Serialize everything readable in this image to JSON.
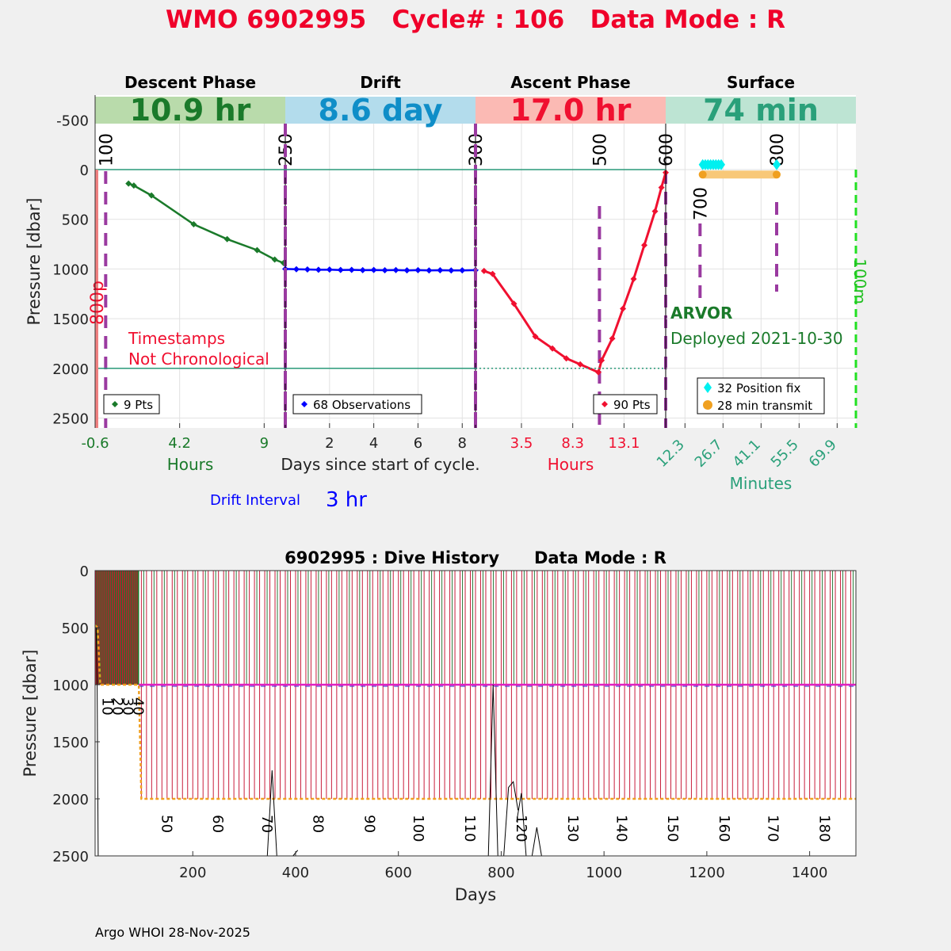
{
  "title": "WMO 6902995   Cycle# : 106   Data Mode : R",
  "footer": "Argo WHOI 28-Nov-2025",
  "colors": {
    "title": "#f0002a",
    "descent": "#1a7a2a",
    "drift": "#0000ff",
    "ascent": "#f01030",
    "surface": "#2aa07a",
    "marker": "#9a3aa0",
    "fix": "#00f0f0",
    "transmit": "#f0a020"
  },
  "chart_data": [
    {
      "type": "line",
      "name": "cycle",
      "ylabel": "Pressure [dbar]",
      "ylim": [
        2600,
        -750
      ],
      "yticks": [
        -500,
        0,
        500,
        1000,
        1500,
        2000,
        2500
      ],
      "xlabel_center": "Days since start of cycle.",
      "drift_interval_label": "Drift Interval",
      "drift_interval_value": "3 hr",
      "annotation_note": [
        "Timestamps",
        "Not Chronological"
      ],
      "float_type": "ARVOR",
      "deployed": "Deployed 2021-10-30",
      "phases": [
        {
          "key": "descent",
          "title": "Descent Phase",
          "duration": "10.9 hr",
          "band_color": "#b9dbab",
          "text_color": "#1a7a2a",
          "xlim": [
            -0.6,
            10.2
          ],
          "xticks": [
            -0.6,
            4.2,
            9
          ],
          "xlabel": "Hours",
          "tick_color": "#1a7a2a",
          "legend": "9 Pts",
          "series_color": "#1a7a2a",
          "x": [
            1.3,
            1.6,
            2.6,
            5.0,
            6.9,
            8.6,
            9.6,
            10.1
          ],
          "y": [
            140,
            160,
            260,
            550,
            700,
            810,
            905,
            940
          ],
          "counter_labels": [
            {
              "text": "100",
              "x": 0.0
            }
          ]
        },
        {
          "key": "drift",
          "title": "Drift",
          "duration": "8.6 day",
          "band_color": "#b3dcec",
          "text_color": "#0f8ec8",
          "xlim": [
            0,
            8.6
          ],
          "xticks": [
            2,
            4,
            6,
            8
          ],
          "xlabel": "",
          "tick_color": "#222222",
          "legend": "68 Observations",
          "series_color": "#0000ff",
          "x": [
            0,
            0.5,
            1,
            1.5,
            2,
            2.5,
            3,
            3.5,
            4,
            4.5,
            5,
            5.5,
            6,
            6.5,
            7,
            7.5,
            8,
            8.6
          ],
          "y": [
            1000,
            1003,
            1005,
            1008,
            1006,
            1010,
            1009,
            1012,
            1010,
            1013,
            1011,
            1014,
            1012,
            1015,
            1013,
            1015,
            1014,
            1012
          ],
          "counter_labels": [
            {
              "text": "250",
              "x": 0.0
            }
          ]
        },
        {
          "key": "ascent",
          "title": "Ascent Phase",
          "duration": "17.0 hr",
          "band_color": "#fbbab4",
          "text_color": "#f01030",
          "xlim": [
            -0.8,
            17.0
          ],
          "xticks": [
            3.5,
            8.3,
            13.1
          ],
          "xlabel": "Hours",
          "tick_color": "#f01030",
          "legend": "90 Pts",
          "series_color": "#f01030",
          "x": [
            0.0,
            0.8,
            2.8,
            4.8,
            6.4,
            7.7,
            9.0,
            10.7,
            11.0,
            12.0,
            13.0,
            14.0,
            15.0,
            16.0,
            16.6,
            17.0
          ],
          "y": [
            1020,
            1050,
            1350,
            1680,
            1800,
            1900,
            1960,
            2040,
            1920,
            1700,
            1400,
            1100,
            760,
            420,
            180,
            30
          ],
          "counter_labels": [
            {
              "text": "300",
              "x": -0.8
            },
            {
              "text": "500",
              "x": 10.8
            },
            {
              "text": "600",
              "x": 17.0
            }
          ]
        },
        {
          "key": "surface",
          "title": "Surface",
          "duration": "74 min",
          "band_color": "#bde4d3",
          "text_color": "#2aa07a",
          "xlim": [
            5.0,
            77.0
          ],
          "xticks": [
            12.3,
            26.7,
            41.1,
            55.5,
            69.9
          ],
          "xlabel": "Minutes",
          "tick_color": "#2aa07a",
          "legend_fix": "32 Position fix",
          "legend_transmit": "28 min transmit",
          "fix_x": [
            19,
            20,
            21,
            22,
            23,
            24,
            25,
            26,
            47
          ],
          "fix_y": [
            -50,
            -50,
            -50,
            -50,
            -50,
            -50,
            -50,
            -50,
            -50
          ],
          "transmit_x": [
            19,
            47
          ],
          "transmit_y": [
            50,
            50
          ],
          "counter_labels": [
            {
              "text": "700",
              "x": 18.0
            },
            {
              "text": "800",
              "x": 47.0
            },
            {
              "text": "100m",
              "x": 77.0
            }
          ]
        }
      ],
      "depth_flag": "800p"
    },
    {
      "type": "line",
      "name": "dive-history",
      "title": "6902995 : Dive History      Data Mode : R",
      "xlabel": "Days",
      "ylabel": "Pressure [dbar]",
      "xlim": [
        10,
        1490
      ],
      "ylim": [
        2500,
        0
      ],
      "xticks": [
        200,
        400,
        600,
        800,
        1000,
        1200,
        1400
      ],
      "yticks": [
        0,
        500,
        1000,
        1500,
        2000,
        2500
      ],
      "cycle_labels": [
        {
          "text": "10",
          "day": 25,
          "p": 1110
        },
        {
          "text": "20",
          "day": 45,
          "p": 1110
        },
        {
          "text": "30",
          "day": 65,
          "p": 1110
        },
        {
          "text": "40",
          "day": 85,
          "p": 1110
        },
        {
          "text": "50",
          "day": 140,
          "p": 2140
        },
        {
          "text": "60",
          "day": 240,
          "p": 2140
        },
        {
          "text": "70",
          "day": 335,
          "p": 2140
        },
        {
          "text": "80",
          "day": 435,
          "p": 2140
        },
        {
          "text": "90",
          "day": 535,
          "p": 2140
        },
        {
          "text": "100",
          "day": 630,
          "p": 2140
        },
        {
          "text": "110",
          "day": 730,
          "p": 2140
        },
        {
          "text": "120",
          "day": 830,
          "p": 2140
        },
        {
          "text": "130",
          "day": 930,
          "p": 2140
        },
        {
          "text": "140",
          "day": 1025,
          "p": 2140
        },
        {
          "text": "150",
          "day": 1125,
          "p": 2140
        },
        {
          "text": "160",
          "day": 1225,
          "p": 2140
        },
        {
          "text": "170",
          "day": 1320,
          "p": 2140
        },
        {
          "text": "180",
          "day": 1420,
          "p": 2140
        }
      ],
      "profile_depth": {
        "early_day_end": 95,
        "early_depth": 1000,
        "deep_depth": 2000
      },
      "drift_depth": 1000
    }
  ]
}
